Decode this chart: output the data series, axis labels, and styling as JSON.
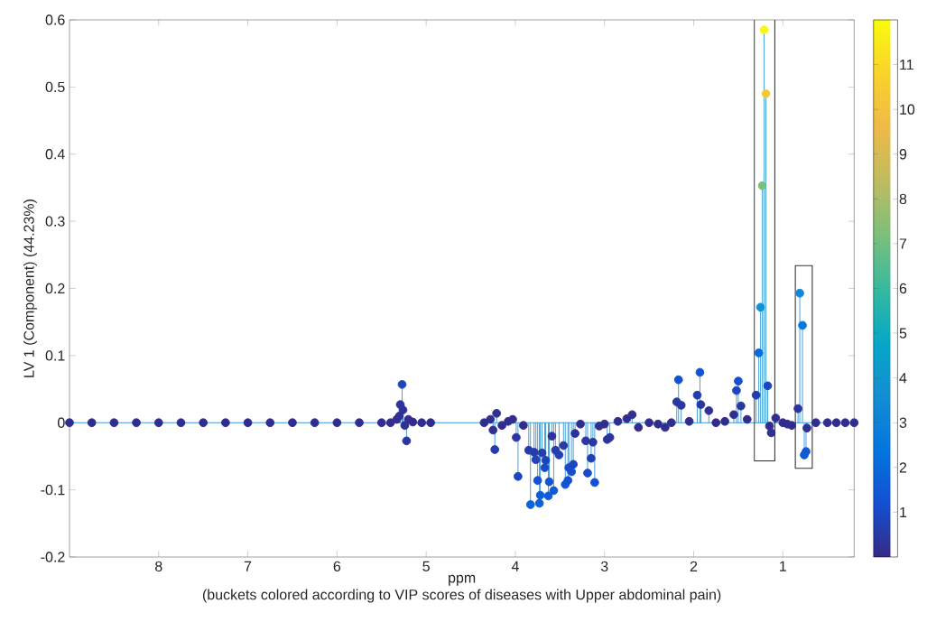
{
  "chart_data": {
    "type": "lollipop",
    "xlabel": "ppm",
    "ylabel": "LV 1 (Component) (44.23%)",
    "annotations": [
      "(buckets colored according to VIP scores of diseases with Upper abdominal pain)"
    ],
    "marker": "circle",
    "x": [
      9.0,
      8.75,
      8.5,
      8.25,
      8.0,
      7.75,
      7.5,
      7.25,
      7.0,
      6.75,
      6.5,
      6.25,
      6.0,
      5.75,
      5.5,
      5.4,
      5.33,
      5.3,
      5.29,
      5.27,
      5.26,
      5.24,
      5.22,
      5.2,
      5.15,
      5.05,
      4.95,
      4.35,
      4.28,
      4.25,
      4.23,
      4.21,
      4.15,
      4.08,
      4.03,
      3.99,
      3.97,
      3.91,
      3.85,
      3.83,
      3.79,
      3.77,
      3.75,
      3.73,
      3.72,
      3.7,
      3.67,
      3.66,
      3.63,
      3.62,
      3.59,
      3.57,
      3.55,
      3.51,
      3.46,
      3.44,
      3.41,
      3.4,
      3.37,
      3.35,
      3.33,
      3.27,
      3.21,
      3.19,
      3.15,
      3.13,
      3.11,
      3.06,
      3.0,
      2.97,
      2.94,
      2.85,
      2.75,
      2.69,
      2.62,
      2.5,
      2.4,
      2.32,
      2.25,
      2.19,
      2.17,
      2.14,
      2.05,
      1.96,
      1.93,
      1.92,
      1.83,
      1.75,
      1.65,
      1.55,
      1.52,
      1.5,
      1.47,
      1.4,
      1.3,
      1.27,
      1.25,
      1.23,
      1.21,
      1.19,
      1.17,
      1.15,
      1.13,
      1.08,
      1.0,
      0.95,
      0.9,
      0.83,
      0.81,
      0.78,
      0.76,
      0.74,
      0.73,
      0.63,
      0.5,
      0.4,
      0.3,
      0.2
    ],
    "values": [
      0,
      0,
      0,
      0,
      0,
      0,
      0,
      0,
      0,
      0,
      0,
      0,
      0,
      0,
      0,
      0,
      0.005,
      0.01,
      0.027,
      0.057,
      0.019,
      -0.004,
      -0.027,
      0.005,
      0.001,
      0,
      0,
      0,
      0.005,
      -0.011,
      -0.04,
      0.014,
      -0.004,
      0.002,
      0.005,
      -0.022,
      -0.08,
      -0.004,
      -0.041,
      -0.122,
      -0.044,
      -0.055,
      -0.086,
      -0.12,
      -0.108,
      -0.045,
      -0.067,
      -0.056,
      -0.109,
      -0.088,
      -0.02,
      -0.101,
      -0.041,
      -0.048,
      -0.034,
      -0.092,
      -0.086,
      -0.067,
      -0.073,
      -0.062,
      -0.016,
      -0.002,
      -0.027,
      -0.075,
      -0.053,
      -0.029,
      -0.089,
      -0.005,
      -0.002,
      -0.025,
      -0.022,
      0.002,
      0.006,
      0.012,
      -0.007,
      0,
      -0.002,
      -0.007,
      0,
      0.031,
      0.064,
      0.026,
      0.002,
      0.041,
      0.075,
      0.027,
      0.018,
      0,
      0.002,
      0.012,
      0.048,
      0.062,
      0.025,
      0.005,
      0.041,
      0.104,
      0.172,
      0.353,
      0.585,
      0.49,
      0.055,
      -0.005,
      -0.015,
      0.007,
      0,
      -0.002,
      -0.004,
      0.021,
      0.193,
      0.145,
      -0.048,
      -0.043,
      -0.008,
      0,
      0,
      0,
      0,
      0
    ],
    "cvalues": [
      0.1,
      0.1,
      0.1,
      0.1,
      0.1,
      0.1,
      0.1,
      0.1,
      0.1,
      0.1,
      0.1,
      0.1,
      0.1,
      0.1,
      0.1,
      0.1,
      0.15,
      0.2,
      0.3,
      0.9,
      0.3,
      0.15,
      0.4,
      0.15,
      0.1,
      0.1,
      0.1,
      0.1,
      0.15,
      0.2,
      0.6,
      0.2,
      0.1,
      0.1,
      0.1,
      0.35,
      0.9,
      0.1,
      0.6,
      1.8,
      0.6,
      0.8,
      1.3,
      1.8,
      1.6,
      0.6,
      1.0,
      0.8,
      1.6,
      1.3,
      0.3,
      1.5,
      0.6,
      0.7,
      0.5,
      1.4,
      1.3,
      1.0,
      1.1,
      0.9,
      0.3,
      0.1,
      0.4,
      1.0,
      0.7,
      0.4,
      1.2,
      0.1,
      0.1,
      0.3,
      0.3,
      0.1,
      0.1,
      0.15,
      0.1,
      0.1,
      0.1,
      0.1,
      0.1,
      0.4,
      1.3,
      0.4,
      0.1,
      0.6,
      1.3,
      0.4,
      0.2,
      0.1,
      0.1,
      0.2,
      0.8,
      1.2,
      0.4,
      0.1,
      0.6,
      2.0,
      3.8,
      7.2,
      11.9,
      10.3,
      0.9,
      0.1,
      0.2,
      0.1,
      0.1,
      0.1,
      0.1,
      0.3,
      3.3,
      2.6,
      1.6,
      1.5,
      0.2,
      0.1,
      0.1,
      0.1,
      0.1,
      0.1
    ],
    "xlim": [
      9,
      0.2
    ],
    "ylim": [
      -0.2,
      0.6
    ],
    "xticks": [
      1,
      2,
      3,
      4,
      5,
      6,
      7,
      8
    ],
    "yticks": [
      -0.2,
      -0.1,
      0,
      0.1,
      0.2,
      0.3,
      0.4,
      0.5,
      0.6
    ],
    "clim": [
      0,
      12
    ],
    "cticks": [
      1,
      2,
      3,
      4,
      5,
      6,
      7,
      8,
      9,
      10,
      11
    ],
    "ref_lines": [
      {
        "axis": "y",
        "value": 0,
        "color": "#3a9ad9"
      }
    ]
  }
}
